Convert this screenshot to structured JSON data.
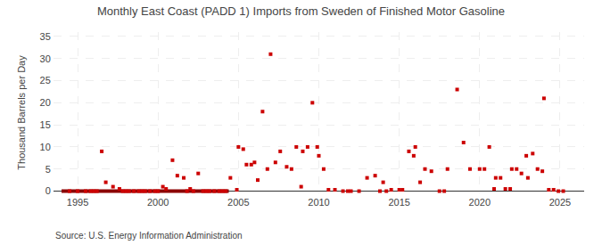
{
  "chart_data": {
    "type": "scatter",
    "title": "Monthly East Coast (PADD 1) Imports from Sweden of Finished Motor Gasoline",
    "ylabel": "Thousand Barrels per Day",
    "annotations": [
      "Source: U.S. Energy Information Administration"
    ],
    "xlim": [
      1993.5,
      2026.5
    ],
    "ylim": [
      -0.5,
      36
    ],
    "xticks": [
      1995,
      2000,
      2005,
      2010,
      2015,
      2020,
      2025
    ],
    "yticks": [
      0,
      5,
      10,
      15,
      20,
      25,
      30,
      35
    ],
    "grid": true,
    "series": [
      {
        "type": "scatter",
        "marker": "square",
        "color": "#cc0000",
        "x": [
          1996.5,
          1996.75,
          1997.2,
          1997.6,
          2000.3,
          2000.5,
          2000.9,
          2001.2,
          2001.6,
          2002.0,
          2002.5,
          2004.5,
          2004.9,
          2005.0,
          2005.3,
          2005.5,
          2005.8,
          2006.0,
          2006.2,
          2006.5,
          2006.8,
          2007.0,
          2007.3,
          2007.6,
          2008.0,
          2008.3,
          2008.6,
          2008.9,
          2009.0,
          2009.3,
          2009.6,
          2009.9,
          2010.0,
          2010.3,
          2010.6,
          2011.0,
          2013.0,
          2013.5,
          2014.0,
          2014.5,
          2015.0,
          2015.2,
          2015.6,
          2015.9,
          2016.0,
          2016.3,
          2016.6,
          2017.0,
          2018.0,
          2018.6,
          2019.0,
          2019.4,
          2020.0,
          2020.3,
          2020.6,
          2020.9,
          2021.0,
          2021.3,
          2021.6,
          2021.9,
          2022.0,
          2022.3,
          2022.6,
          2022.9,
          2023.0,
          2023.3,
          2023.6,
          2023.9,
          2024.0,
          2024.3,
          2024.6,
          1994.5,
          1995.0,
          1995.5,
          1995.8,
          1996.0,
          1996.2,
          1997.8,
          1998.0,
          1998.2,
          1998.5,
          1998.8,
          1999.0,
          1999.2,
          1999.5,
          1999.8,
          2000.0,
          2001.8,
          2002.2,
          2002.8,
          2003.0,
          2003.2,
          2003.5,
          2003.8,
          2004.0,
          2004.2,
          2011.5,
          2011.8,
          2012.0,
          2012.5,
          2013.8,
          2014.2,
          2017.5,
          2017.8,
          2024.9,
          2025.2
        ],
        "values": [
          9.0,
          2.0,
          1.0,
          0.5,
          1.0,
          0.5,
          7.0,
          3.5,
          3.0,
          0.5,
          4.0,
          3.0,
          0.3,
          10.0,
          9.5,
          6.0,
          6.0,
          6.5,
          2.5,
          18.0,
          5.0,
          31.0,
          6.5,
          9.0,
          5.5,
          5.0,
          10.0,
          1.0,
          9.0,
          10.0,
          20.0,
          10.0,
          8.0,
          5.0,
          0.3,
          0.3,
          3.0,
          3.5,
          2.0,
          0.3,
          0.3,
          0.3,
          9.0,
          8.0,
          10.0,
          2.0,
          5.0,
          4.5,
          5.0,
          23.0,
          11.0,
          5.0,
          5.0,
          5.0,
          10.0,
          0.5,
          3.0,
          3.0,
          0.5,
          0.5,
          5.0,
          5.0,
          4.0,
          8.0,
          3.0,
          8.5,
          5.0,
          4.5,
          21.0,
          0.3,
          0.3,
          0,
          0,
          0,
          0,
          0,
          0,
          0,
          0,
          0,
          0,
          0,
          0,
          0,
          0,
          0,
          0,
          0,
          0,
          0,
          0,
          0,
          0,
          0,
          0,
          0,
          0,
          0,
          0,
          0,
          0,
          0,
          0,
          0,
          0,
          0
        ]
      },
      {
        "type": "line",
        "line_style": "solid",
        "color": "#8b0000",
        "x": [
          1994.0,
          2004.4
        ],
        "values": [
          0,
          0
        ]
      }
    ]
  }
}
